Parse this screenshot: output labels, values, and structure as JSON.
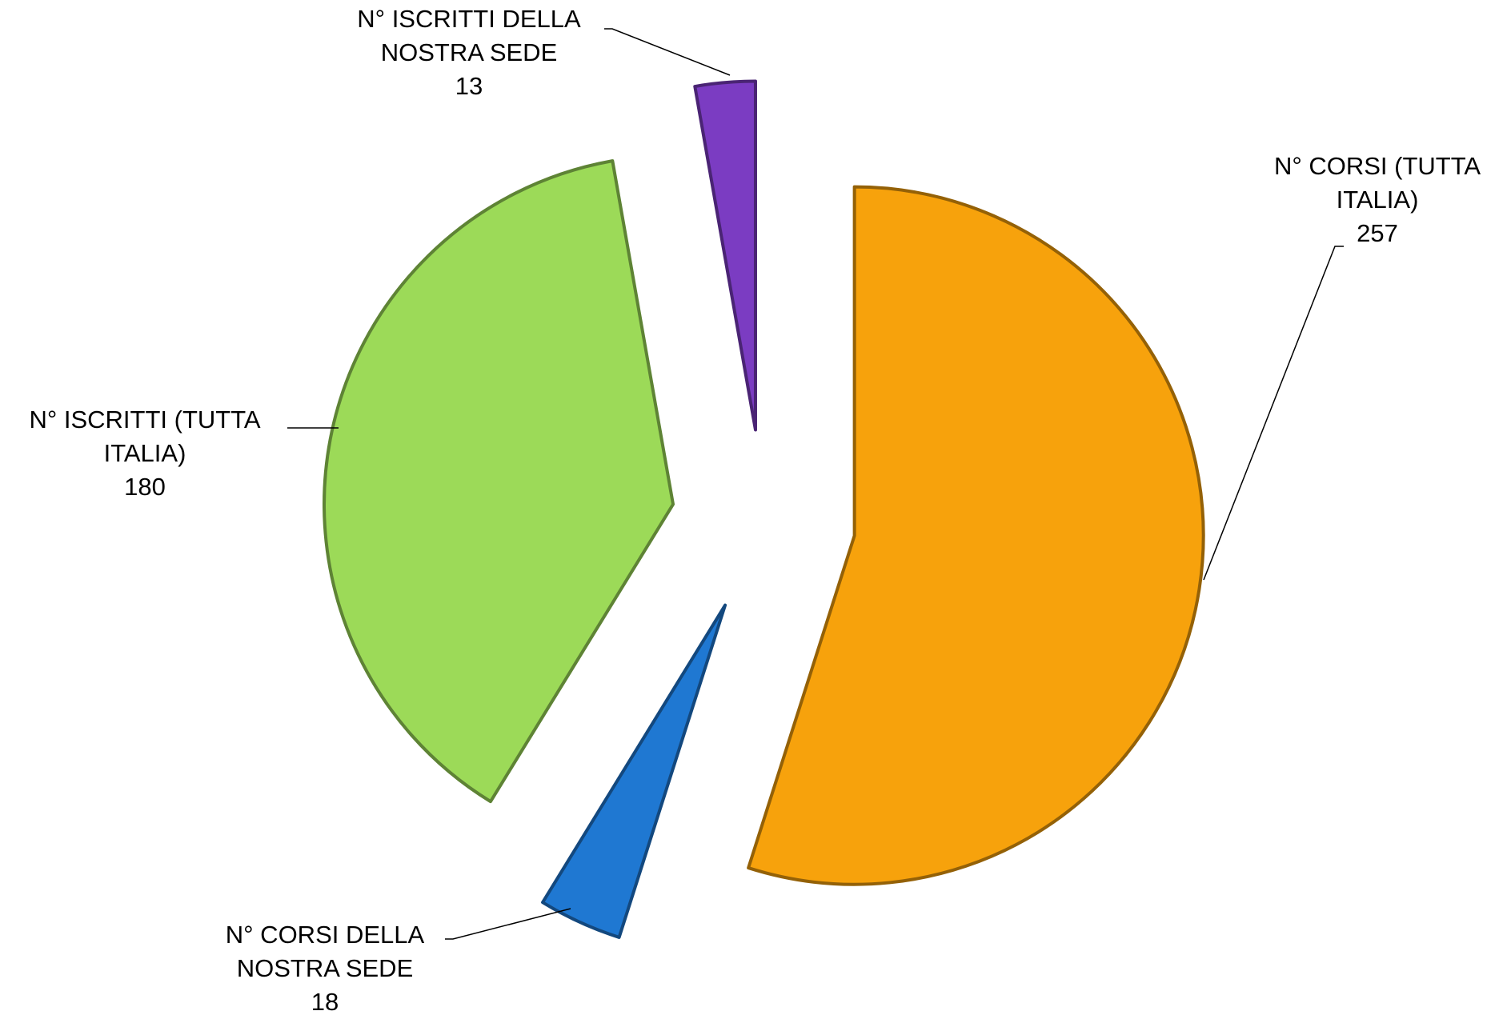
{
  "chart_data": {
    "type": "pie",
    "categories": [
      "N° CORSI (TUTTA ITALIA)",
      "N° CORSI DELLA NOSTRA SEDE",
      "N° ISCRITTI (TUTTA ITALIA)",
      "N° ISCRITTI DELLA NOSTRA SEDE"
    ],
    "values": [
      257,
      18,
      180,
      13
    ],
    "colors": [
      "#f7a20c",
      "#1f78d2",
      "#9cda58",
      "#7b3cc2"
    ]
  }
}
